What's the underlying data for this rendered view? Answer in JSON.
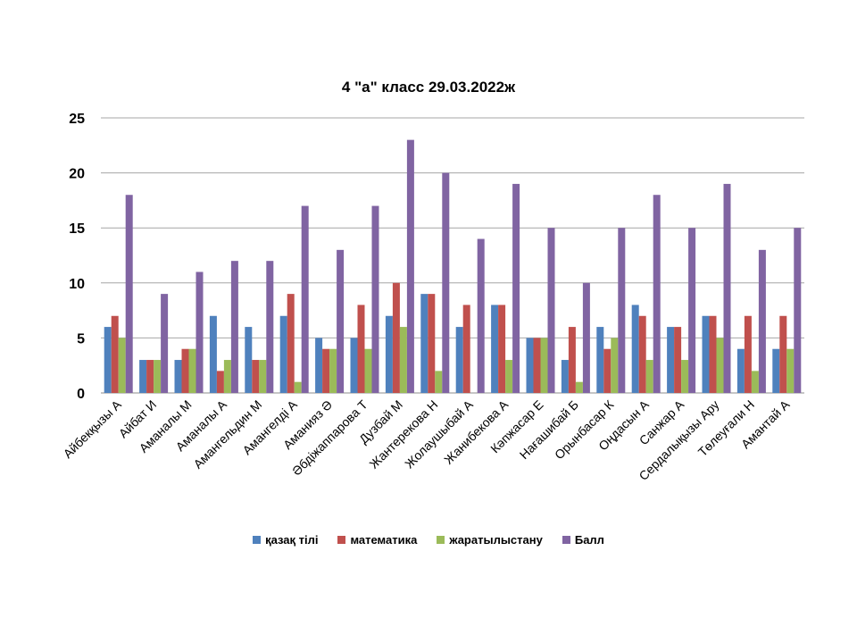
{
  "chart_data": {
    "type": "bar",
    "title": "4 \"а\" класс 29.03.2022ж",
    "xlabel": "",
    "ylabel": "",
    "ylim": [
      0,
      25
    ],
    "yticks": [
      0,
      5,
      10,
      15,
      20,
      25
    ],
    "grid": true,
    "legend_position": "bottom",
    "categories": [
      "Айбекқызы А",
      "Айбат И",
      "Аманалы М",
      "Аманалы А",
      "Амангельдин М",
      "Амангелді А",
      "Аманияз Ә",
      "Әбдіжаппарова Т",
      "Дузбай М",
      "Жантерекова Н",
      "Жолаушыбай А",
      "Жанибекова А",
      "Кәпжасар Е",
      "Нағашибай Б",
      "Орынбасар К",
      "Оңдасын А",
      "Санжар А",
      "Сердалықызы Ару",
      "Төлеуғали Н",
      "Амантай А"
    ],
    "series": [
      {
        "name": "қазақ тілі",
        "color": "#4F81BD",
        "values": [
          6,
          3,
          3,
          7,
          6,
          7,
          5,
          5,
          7,
          9,
          6,
          8,
          5,
          3,
          6,
          8,
          6,
          7,
          4,
          4
        ]
      },
      {
        "name": "математика",
        "color": "#C0504D",
        "values": [
          7,
          3,
          4,
          2,
          3,
          9,
          4,
          8,
          10,
          9,
          8,
          8,
          5,
          6,
          4,
          7,
          6,
          7,
          7,
          7
        ]
      },
      {
        "name": "жаратылыстану",
        "color": "#9BBB59",
        "values": [
          5,
          3,
          4,
          3,
          3,
          1,
          4,
          4,
          6,
          2,
          0,
          3,
          5,
          1,
          5,
          3,
          3,
          5,
          2,
          4
        ]
      },
      {
        "name": "Балл",
        "color": "#8064A2",
        "values": [
          18,
          9,
          11,
          12,
          12,
          17,
          13,
          17,
          23,
          20,
          14,
          19,
          15,
          10,
          15,
          18,
          15,
          19,
          13,
          15
        ]
      }
    ]
  }
}
